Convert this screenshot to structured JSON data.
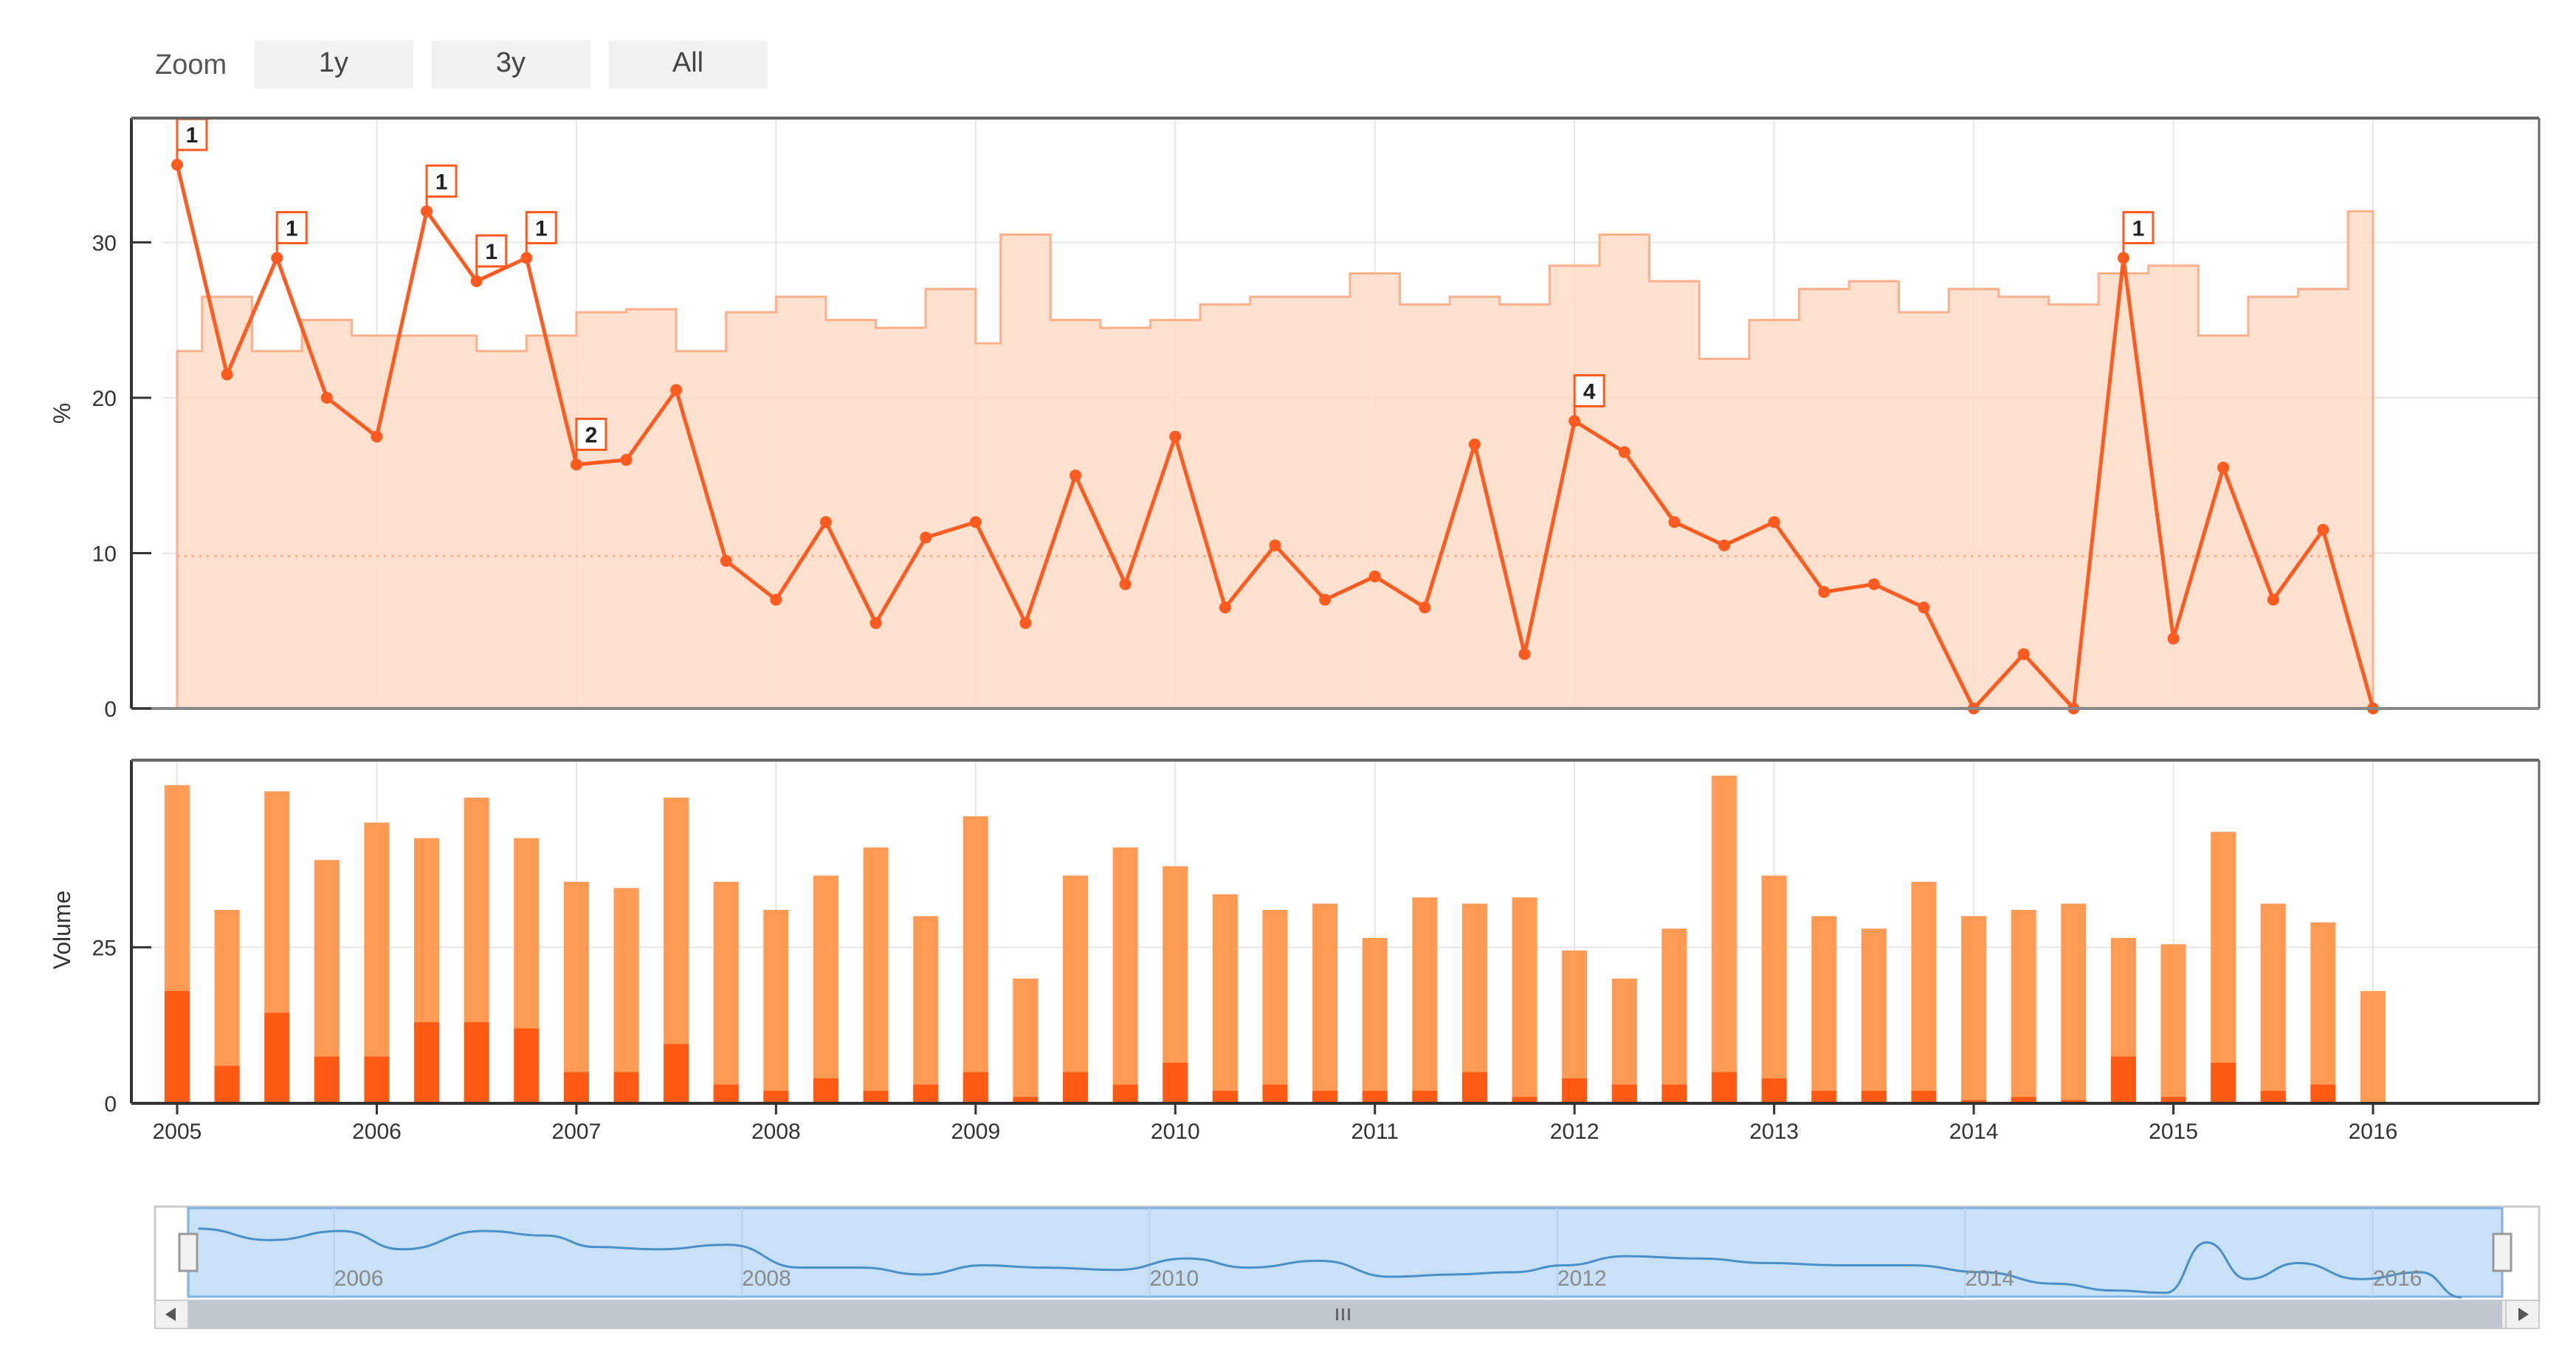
{
  "zoom": {
    "label": "Zoom",
    "buttons": [
      "1y",
      "3y",
      "All"
    ]
  },
  "colors": {
    "line": "#ff5a1f",
    "area_fill": "#ffdcc8",
    "area_stroke": "#ffb08a",
    "volume_bar": "#ff9a55",
    "volume_dark": "#ff5a14",
    "navigator_fill": "#c9e1f7",
    "navigator_line": "#4a90c8",
    "grid": "#e6e6e6"
  },
  "chart_data": [
    {
      "type": "line",
      "ylabel": "%",
      "ylim": [
        0,
        38
      ],
      "yticks": [
        0,
        10,
        20,
        30
      ],
      "x_ticks": [
        "2005",
        "2006",
        "2007",
        "2008",
        "2009",
        "2010",
        "2011",
        "2012",
        "2013",
        "2014",
        "2015",
        "2016"
      ],
      "series": [
        {
          "kind": "line",
          "x": [
            2005.0,
            2005.25,
            2005.5,
            2005.75,
            2006.0,
            2006.25,
            2006.5,
            2006.75,
            2007.0,
            2007.25,
            2007.5,
            2007.75,
            2008.0,
            2008.25,
            2008.5,
            2008.75,
            2009.0,
            2009.25,
            2009.5,
            2009.75,
            2010.0,
            2010.25,
            2010.5,
            2010.75,
            2011.0,
            2011.25,
            2011.5,
            2011.75,
            2012.0,
            2012.25,
            2012.5,
            2012.75,
            2013.0,
            2013.25,
            2013.5,
            2013.75,
            2014.0,
            2014.25,
            2014.5,
            2014.75,
            2015.0,
            2015.25,
            2015.5,
            2015.75,
            2016.0
          ],
          "values": [
            35,
            21.5,
            29,
            20,
            17.5,
            32,
            27.5,
            29,
            15.7,
            16,
            20.5,
            9.5,
            7,
            12,
            5.5,
            11,
            12,
            5.5,
            15,
            8,
            17.5,
            6.5,
            10.5,
            7,
            8.5,
            6.5,
            17,
            3.5,
            18.5,
            16.5,
            12,
            10.5,
            12,
            7.5,
            8,
            6.5,
            0,
            3.5,
            0,
            29,
            4.5,
            15.5,
            7,
            11.5,
            0
          ]
        },
        {
          "kind": "step-area",
          "x": [
            2005.0,
            2005.125,
            2005.375,
            2005.625,
            2005.875,
            2006.25,
            2006.5,
            2006.75,
            2007.0,
            2007.25,
            2007.5,
            2007.75,
            2008.0,
            2008.25,
            2008.5,
            2008.75,
            2009.0,
            2009.125,
            2009.375,
            2009.625,
            2009.875,
            2010.125,
            2010.375,
            2010.625,
            2010.875,
            2011.125,
            2011.375,
            2011.625,
            2011.875,
            2012.125,
            2012.375,
            2012.625,
            2012.875,
            2013.125,
            2013.375,
            2013.625,
            2013.875,
            2014.125,
            2014.375,
            2014.625,
            2014.875,
            2015.125,
            2015.375,
            2015.625,
            2015.875,
            2016.0
          ],
          "values": [
            23,
            26.5,
            23,
            25,
            24,
            24,
            23,
            24,
            25.5,
            25.7,
            23,
            25.5,
            26.5,
            25,
            24.5,
            27,
            23.5,
            30.5,
            25,
            24.5,
            25,
            26,
            26.5,
            26.5,
            28,
            26,
            26.5,
            26,
            28.5,
            30.5,
            27.5,
            22.5,
            25,
            27,
            27.5,
            25.5,
            27,
            26.5,
            26,
            28,
            28.5,
            24,
            26.5,
            27,
            32,
            32
          ]
        },
        {
          "kind": "dotted-reference",
          "value": 9.8
        }
      ],
      "annotations": [
        {
          "x": 2005.0,
          "label": "1"
        },
        {
          "x": 2005.5,
          "label": "1"
        },
        {
          "x": 2006.25,
          "label": "1"
        },
        {
          "x": 2006.5,
          "label": "1"
        },
        {
          "x": 2006.75,
          "label": "1"
        },
        {
          "x": 2007.0,
          "label": "2"
        },
        {
          "x": 2012.0,
          "label": "4"
        },
        {
          "x": 2014.75,
          "label": "1"
        }
      ]
    },
    {
      "type": "bar",
      "ylabel": "Volume",
      "ylim": [
        0,
        55
      ],
      "yticks": [
        0,
        25
      ],
      "x": [
        2005.0,
        2005.25,
        2005.5,
        2005.75,
        2006.0,
        2006.25,
        2006.5,
        2006.75,
        2007.0,
        2007.25,
        2007.5,
        2007.75,
        2008.0,
        2008.25,
        2008.5,
        2008.75,
        2009.0,
        2009.25,
        2009.5,
        2009.75,
        2010.0,
        2010.25,
        2010.5,
        2010.75,
        2011.0,
        2011.25,
        2011.5,
        2011.75,
        2012.0,
        2012.25,
        2012.5,
        2012.75,
        2013.0,
        2013.25,
        2013.5,
        2013.75,
        2014.0,
        2014.25,
        2014.5,
        2014.75,
        2015.0,
        2015.25,
        2015.5,
        2015.75,
        2016.0
      ],
      "series": [
        {
          "name": "",
          "values": [
            51,
            31,
            50,
            39,
            45,
            42.5,
            49,
            42.5,
            35.5,
            34.5,
            49,
            35.5,
            31,
            36.5,
            41,
            30,
            46,
            20,
            36.5,
            41,
            38,
            33.5,
            31,
            32,
            26.5,
            33,
            32,
            33,
            24.5,
            20,
            28,
            52.5,
            36.5,
            30,
            28,
            35.5,
            30,
            31,
            32,
            26.5,
            25.5,
            43.5,
            32,
            29,
            18
          ]
        },
        {
          "name": "",
          "values": [
            18,
            6,
            14.5,
            7.5,
            7.5,
            13,
            13,
            12,
            5,
            5,
            9.5,
            3,
            2,
            4,
            2,
            3,
            5,
            1,
            5,
            3,
            6.5,
            2,
            3,
            2,
            2,
            2,
            5,
            1,
            4,
            3,
            3,
            5,
            4,
            2,
            2,
            2,
            0.5,
            1,
            0.5,
            7.5,
            1,
            6.5,
            2,
            3,
            0
          ]
        }
      ]
    },
    {
      "type": "area",
      "x_ticks": [
        "2006",
        "2008",
        "2010",
        "2012",
        "2014",
        "2016"
      ],
      "x": [
        2004.9,
        2005.25,
        2005.6,
        2005.9,
        2006.3,
        2006.6,
        2006.85,
        2007.15,
        2007.5,
        2007.85,
        2008.15,
        2008.45,
        2008.75,
        2009.05,
        2009.4,
        2009.75,
        2010.05,
        2010.4,
        2010.75,
        2011.05,
        2011.35,
        2011.6,
        2011.9,
        2012.25,
        2012.6,
        2012.95,
        2013.3,
        2013.65,
        2014.0,
        2014.3,
        2014.55,
        2014.75,
        2014.95,
        2015.2,
        2015.5,
        2015.8,
        2016.0
      ],
      "values": [
        30,
        25,
        29,
        21,
        29,
        27,
        22,
        21,
        23,
        13,
        13,
        10,
        14,
        13,
        12,
        17,
        13,
        16,
        9,
        10,
        11,
        14,
        18,
        17,
        15,
        14,
        14,
        11,
        6,
        3,
        2,
        24,
        8,
        15,
        8,
        11,
        0
      ],
      "ylim": [
        0,
        38
      ]
    }
  ]
}
